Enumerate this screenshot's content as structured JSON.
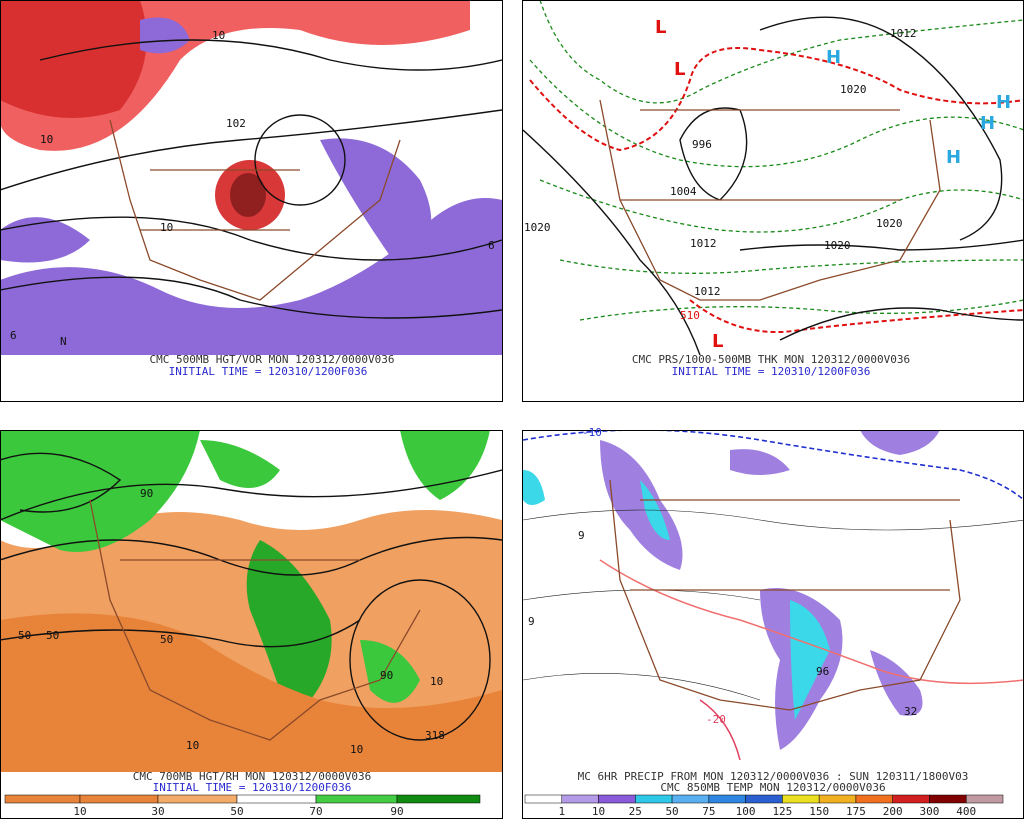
{
  "panels": [
    {
      "caption": "CMC 500MB HGT/VOR MON 120312/0000V036",
      "initial": "INITIAL TIME = 120310/1200F036",
      "labels": [
        "10",
        "10",
        "10",
        "102",
        "6",
        "6",
        "N"
      ]
    },
    {
      "caption": "CMC PRS/1000-500MB THK MON 120312/0000V036",
      "initial": "INITIAL TIME = 120310/1200F036",
      "labels": [
        "H",
        "H",
        "H",
        "H",
        "L",
        "L",
        "L",
        "1012",
        "1020",
        "1020",
        "1004",
        "1012",
        "1020",
        "1012",
        "1020",
        "996",
        "510"
      ]
    },
    {
      "caption": "CMC 700MB HGT/RH MON 120312/0000V036",
      "initial": "INITIAL TIME = 120310/1200F036",
      "labels": [
        "50",
        "50",
        "50",
        "90",
        "90",
        "10",
        "10",
        "10",
        "318"
      ],
      "colorbar": [
        "10",
        "30",
        "50",
        "70",
        "90"
      ]
    },
    {
      "caption": "MC 6HR PRECIP FROM MON 120312/0000V036 : SUN 120311/1800V03",
      "initial": "CMC 850MB TEMP MON 120312/0000V036",
      "labels": [
        "-10",
        "9",
        "9",
        "96",
        "32",
        "-20"
      ],
      "colorbar": [
        "1",
        "10",
        "25",
        "50",
        "75",
        "100",
        "125",
        "150",
        "175",
        "200",
        "300",
        "400"
      ]
    }
  ]
}
